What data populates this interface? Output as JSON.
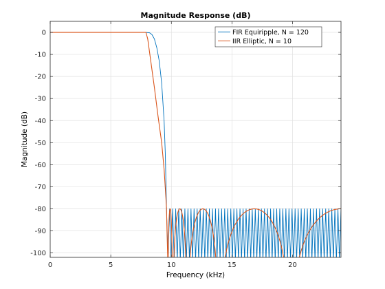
{
  "chart_data": {
    "type": "line",
    "title": "Magnitude Response (dB)",
    "xlabel": "Frequency (kHz)",
    "ylabel": "Magnitude (dB)",
    "xlim": [
      0,
      24
    ],
    "ylim": [
      -102,
      5
    ],
    "xticks": [
      0,
      5,
      10,
      15,
      20
    ],
    "yticks": [
      0,
      -10,
      -20,
      -30,
      -40,
      -50,
      -60,
      -70,
      -80,
      -90,
      -100
    ],
    "grid": true,
    "legend_position": "top-right",
    "series": [
      {
        "name": "FIR Equiripple, N = 120",
        "color": "#0072BD",
        "passband_edge_khz": 8.0,
        "stopband_edge_khz": 9.6,
        "passband_db": 0,
        "stopband_db": -80,
        "num_stopband_lobes": 57,
        "points": [
          [
            0,
            0
          ],
          [
            7.9,
            0
          ],
          [
            8.2,
            -0.2
          ],
          [
            8.4,
            -1
          ],
          [
            8.6,
            -3
          ],
          [
            8.8,
            -7
          ],
          [
            9.0,
            -13
          ],
          [
            9.2,
            -23
          ],
          [
            9.4,
            -40
          ],
          [
            9.5,
            -55
          ],
          [
            9.6,
            -80
          ]
        ]
      },
      {
        "name": "IIR Elliptic, N = 10",
        "color": "#D95319",
        "passband_edge_khz": 8.0,
        "stopband_edge_khz": 9.6,
        "passband_db": 0,
        "stopband_db": -80,
        "stopband_zeros_khz": [
          9.7,
          10.1,
          11.3,
          13.9,
          19.8
        ],
        "points": [
          [
            0,
            0
          ],
          [
            7.9,
            0
          ],
          [
            8.05,
            -3
          ],
          [
            8.3,
            -13
          ],
          [
            8.6,
            -25
          ],
          [
            8.9,
            -38
          ],
          [
            9.2,
            -50
          ],
          [
            9.4,
            -62
          ],
          [
            9.55,
            -75
          ],
          [
            9.6,
            -80
          ],
          [
            9.65,
            -92
          ],
          [
            9.7,
            -102
          ]
        ]
      }
    ]
  }
}
